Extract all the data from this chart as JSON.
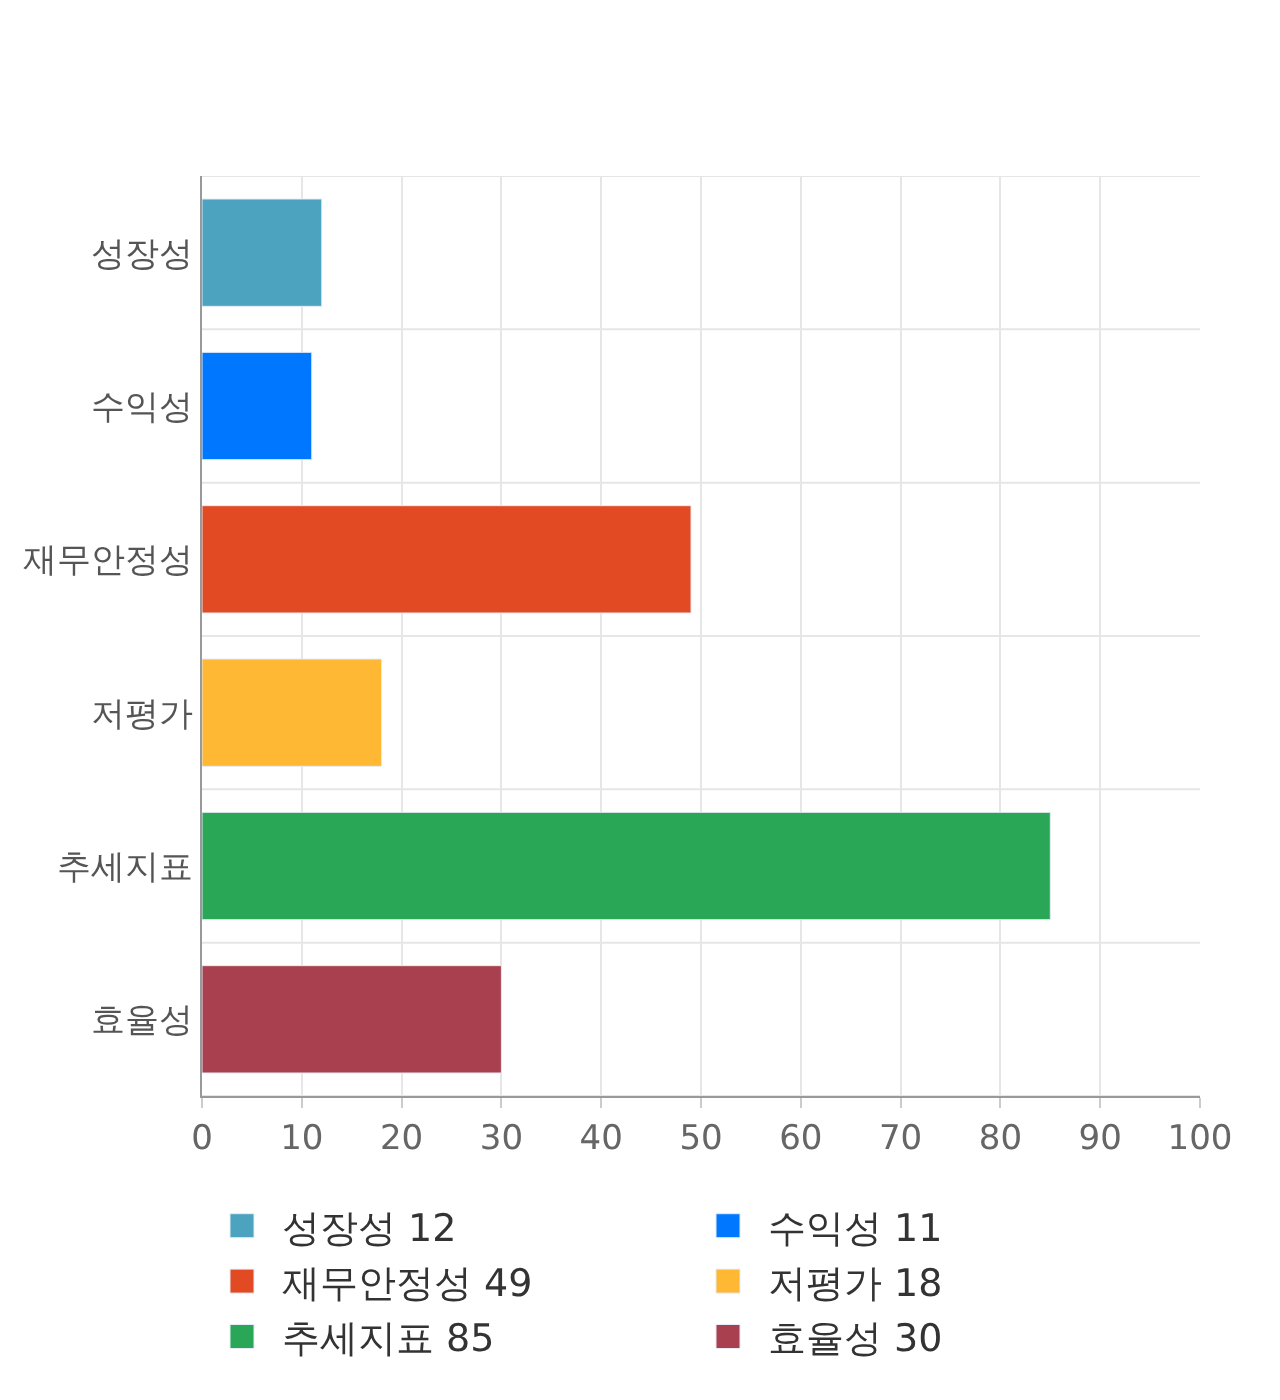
{
  "chart_data": {
    "type": "bar",
    "orientation": "horizontal",
    "categories": [
      "성장성",
      "수익성",
      "재무안정성",
      "저평가",
      "추세지표",
      "효율성"
    ],
    "series": [
      {
        "name": "성장성 12",
        "color": "#4ba3bf",
        "values": [
          12,
          null,
          null,
          null,
          null,
          null
        ]
      },
      {
        "name": "수익성 11",
        "color": "#0077ff",
        "values": [
          null,
          11,
          null,
          null,
          null,
          null
        ]
      },
      {
        "name": "재무안정성 49",
        "color": "#e24a24",
        "values": [
          null,
          null,
          49,
          null,
          null,
          null
        ]
      },
      {
        "name": "저평가 18",
        "color": "#ffb833",
        "values": [
          null,
          null,
          null,
          18,
          null,
          null
        ]
      },
      {
        "name": "추세지표 85",
        "color": "#29a756",
        "values": [
          null,
          null,
          null,
          null,
          85,
          null
        ]
      },
      {
        "name": "효율성 30",
        "color": "#a8404f",
        "values": [
          null,
          null,
          null,
          null,
          null,
          30
        ]
      }
    ],
    "xlim": [
      0,
      100
    ],
    "xticks": [
      0,
      10,
      20,
      30,
      40,
      50,
      60,
      70,
      80,
      90,
      100
    ],
    "grid": true,
    "legend": "bottom"
  }
}
